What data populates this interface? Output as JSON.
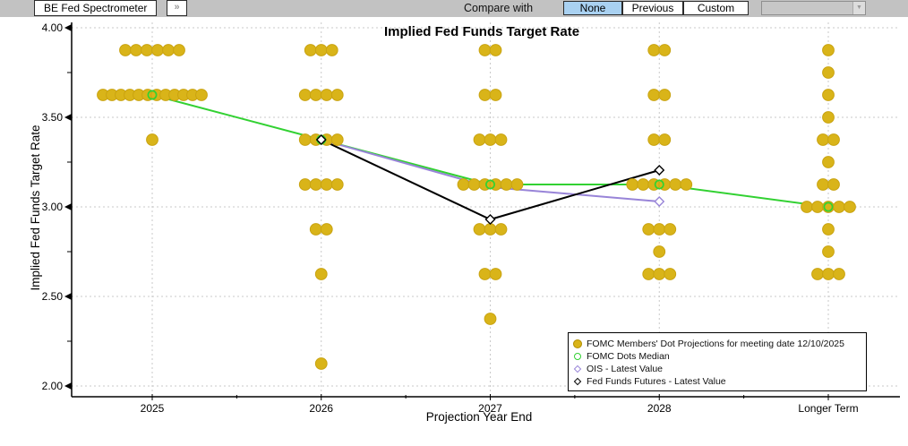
{
  "toolbar": {
    "tab_label": "BE Fed Spectrometer",
    "expand_icon": "»",
    "compare_label": "Compare with",
    "compare_options": [
      "None",
      "Previous",
      "Custom"
    ],
    "selected_compare": "None",
    "dropdown_value": "",
    "dropdown_arrow": "▼",
    "selected_bg": "#a9d1f1"
  },
  "chart_data": {
    "type": "scatter",
    "title": "Implied Fed Funds Target Rate",
    "xlabel": "Projection Year End",
    "ylabel": "Implied Fed Funds Target Rate",
    "ylim": [
      2.0,
      4.0
    ],
    "yticks": [
      4.0,
      3.5,
      3.0,
      2.5,
      2.0
    ],
    "grid": true,
    "legend_position": "bottom-right",
    "categories": [
      "2025",
      "2026",
      "2027",
      "2028",
      "Longer Term"
    ],
    "series": [
      {
        "name": "FOMC Members' Dot Projections for meeting date 12/10/2025",
        "type": "dots",
        "color": "#d9b419",
        "border": "#c9a311",
        "groups": [
          {
            "category": "2025",
            "dots": [
              [
                3.875,
                6
              ],
              [
                3.625,
                12
              ],
              [
                3.375,
                1
              ]
            ]
          },
          {
            "category": "2026",
            "dots": [
              [
                3.875,
                3
              ],
              [
                3.625,
                4
              ],
              [
                3.375,
                4
              ],
              [
                3.125,
                4
              ],
              [
                2.875,
                2
              ],
              [
                2.625,
                1
              ],
              [
                2.125,
                1
              ]
            ]
          },
          {
            "category": "2027",
            "dots": [
              [
                3.875,
                2
              ],
              [
                3.625,
                2
              ],
              [
                3.375,
                3
              ],
              [
                3.125,
                6
              ],
              [
                2.875,
                3
              ],
              [
                2.625,
                2
              ],
              [
                2.375,
                1
              ]
            ]
          },
          {
            "category": "2028",
            "dots": [
              [
                3.875,
                2
              ],
              [
                3.625,
                2
              ],
              [
                3.375,
                2
              ],
              [
                3.125,
                6
              ],
              [
                2.875,
                3
              ],
              [
                2.75,
                1
              ],
              [
                2.625,
                3
              ]
            ]
          },
          {
            "category": "Longer Term",
            "dots": [
              [
                3.875,
                1
              ],
              [
                3.75,
                1
              ],
              [
                3.625,
                1
              ],
              [
                3.5,
                1
              ],
              [
                3.375,
                2
              ],
              [
                3.25,
                1
              ],
              [
                3.125,
                2
              ],
              [
                3.0,
                5
              ],
              [
                2.875,
                1
              ],
              [
                2.75,
                1
              ],
              [
                2.625,
                3
              ]
            ]
          }
        ]
      },
      {
        "name": "FOMC Dots Median",
        "type": "line",
        "color": "#32d132",
        "marker": "circle-open",
        "x": [
          "2025",
          "2026",
          "2027",
          "2028",
          "Longer Term"
        ],
        "y": [
          3.625,
          3.375,
          3.125,
          3.125,
          3.0
        ],
        "marker_at": [
          "2025",
          "2026",
          "2027",
          "2028",
          "Longer Term"
        ]
      },
      {
        "name": "OIS - Latest Value",
        "type": "line",
        "color": "#9884d8",
        "marker": "diamond-open",
        "x": [
          "2026",
          "2027",
          "2028"
        ],
        "y": [
          3.375,
          3.11,
          3.03
        ],
        "marker_at": [
          "2028"
        ]
      },
      {
        "name": "Fed Funds Futures - Latest Value",
        "type": "line",
        "color": "#000000",
        "marker": "diamond-open",
        "x": [
          "2026",
          "2027",
          "2028"
        ],
        "y": [
          3.375,
          2.93,
          3.205
        ],
        "marker_at": [
          "2026",
          "2027",
          "2028"
        ]
      }
    ]
  }
}
